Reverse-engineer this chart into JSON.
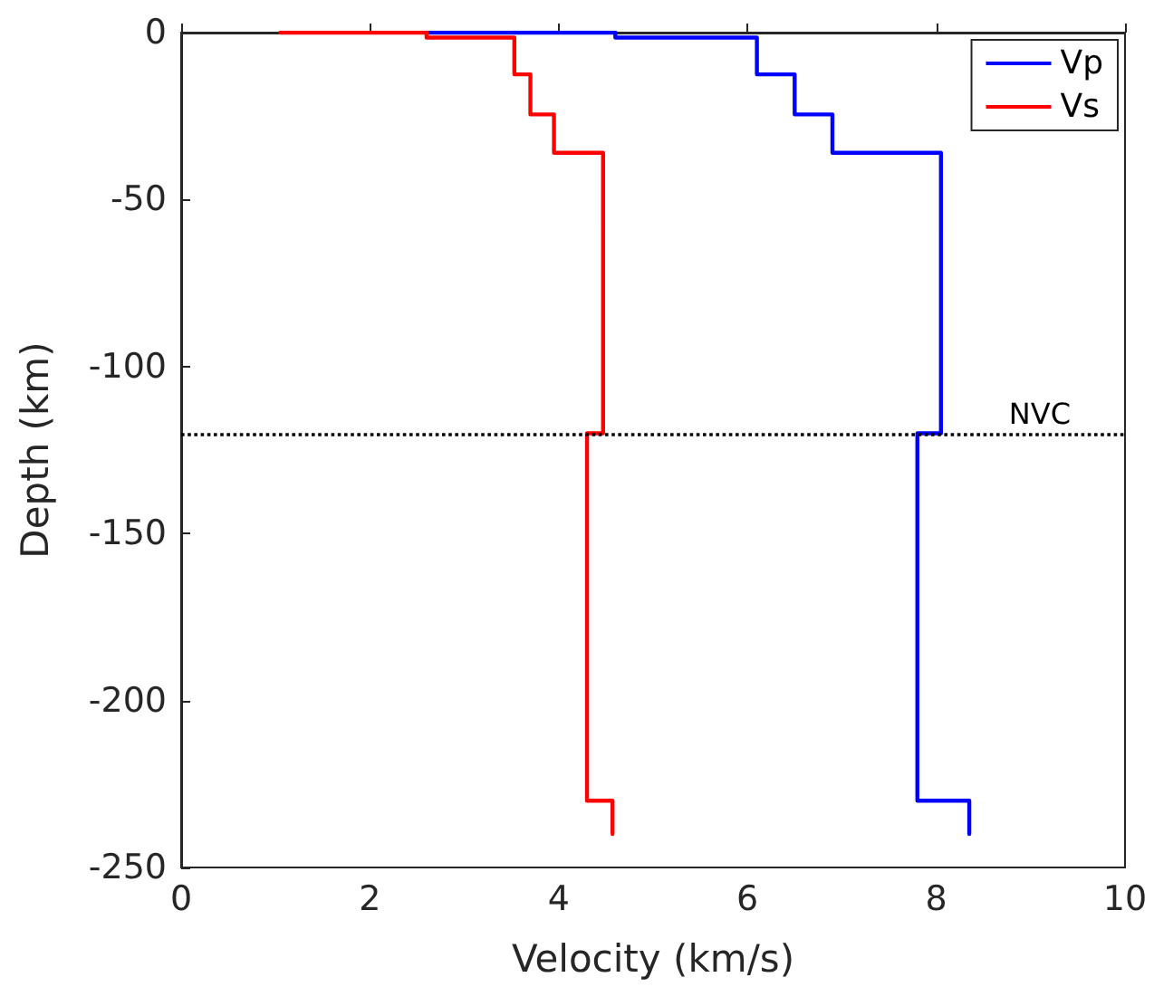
{
  "chart_data": {
    "type": "line",
    "xlabel": "Velocity (km/s)",
    "ylabel": "Depth (km)",
    "xlim": [
      0,
      10
    ],
    "xticks": [
      0,
      2,
      4,
      6,
      8,
      10
    ],
    "ylim": [
      -250,
      0
    ],
    "yticks": [
      -250,
      -200,
      -150,
      -100,
      -50,
      0
    ],
    "series": [
      {
        "name": "Vp",
        "color": "#0000ff",
        "x": [
          2.6,
          4.6,
          4.6,
          6.1,
          6.1,
          6.5,
          6.5,
          6.9,
          6.9,
          8.05,
          8.05,
          7.8,
          7.8,
          8.35,
          8.35
        ],
        "values": [
          0,
          0,
          -1.5,
          -1.5,
          -12.5,
          -12.5,
          -24.5,
          -24.5,
          -36,
          -36,
          -120,
          -120,
          -230,
          -230,
          -240
        ]
      },
      {
        "name": "Vs",
        "color": "#ff0000",
        "x": [
          1.05,
          2.6,
          2.6,
          3.53,
          3.53,
          3.7,
          3.7,
          3.95,
          3.95,
          4.47,
          4.47,
          4.3,
          4.3,
          4.57,
          4.57
        ],
        "values": [
          0,
          0,
          -1.5,
          -1.5,
          -12.5,
          -12.5,
          -24.5,
          -24.5,
          -36,
          -36,
          -120,
          -120,
          -230,
          -230,
          -240
        ]
      }
    ],
    "ref_lines": [
      {
        "axis": "y",
        "value": -120,
        "label": "NVC",
        "color": "#000000",
        "line_style": "dotted"
      }
    ],
    "legend": "top right",
    "grid": false,
    "marker": "none",
    "line_style": "solid"
  }
}
